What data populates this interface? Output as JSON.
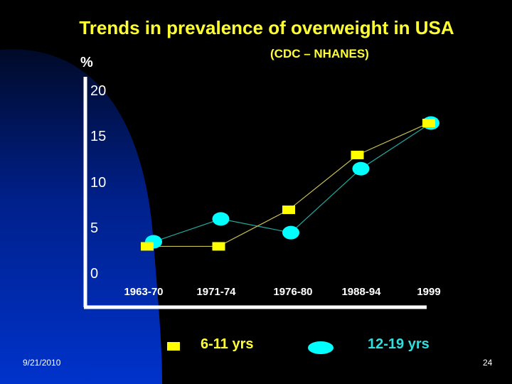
{
  "slide": {
    "date": "9/21/2010",
    "page_number": "24"
  },
  "colors": {
    "background": "#000000",
    "title": "#ffff33",
    "series_6_11": "#ffff00",
    "series_12_19": "#00ffff",
    "line_6_11": "#c8c050",
    "line_12_19": "#20a8a0",
    "axis": "#ffffff",
    "blue_panel_top": "#000a30",
    "blue_panel_bottom": "#0033cc"
  },
  "chart_data": {
    "type": "line",
    "title": "Trends in prevalence of overweight in USA",
    "subtitle": "(CDC – NHANES)",
    "xlabel": "",
    "ylabel": "%",
    "categories": [
      "1963-70",
      "1971-74",
      "1976-80",
      "1988-94",
      "1999"
    ],
    "yticks": [
      "0",
      "5",
      "10",
      "15",
      "20"
    ],
    "ylim": [
      0,
      20
    ],
    "grid": false,
    "legend_position": "bottom",
    "series": [
      {
        "name": "6-11 yrs",
        "marker": "square",
        "values": [
          3,
          3,
          7,
          13,
          16.5
        ]
      },
      {
        "name": "12-19 yrs",
        "marker": "ellipse",
        "values": [
          3.5,
          6,
          4.5,
          11.5,
          16.5
        ]
      }
    ]
  }
}
